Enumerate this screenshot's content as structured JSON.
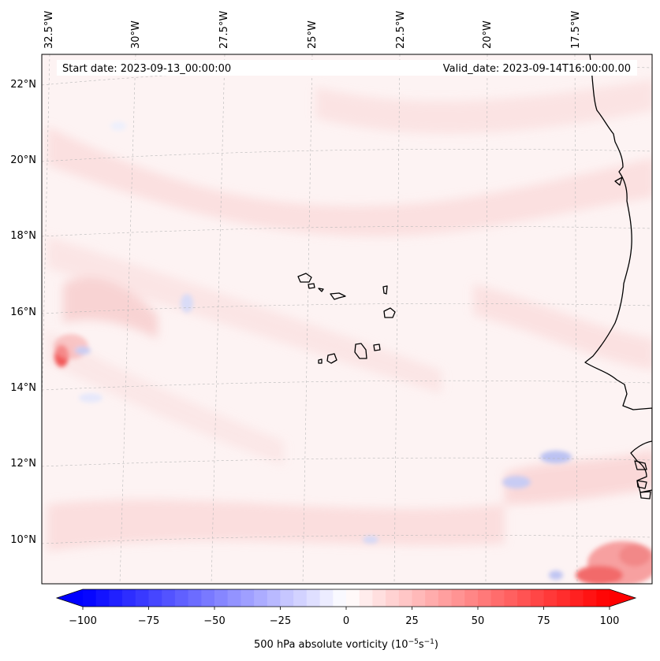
{
  "map": {
    "start_date": "Start date: 2023-09-13_00:00:00",
    "valid_date": "Valid_date: 2023-09-14T16:00:00.00",
    "longitude_labels": [
      "32.5°W",
      "30°W",
      "27.5°W",
      "25°W",
      "22.5°W",
      "20°W",
      "17.5°W"
    ],
    "latitude_labels": [
      "22°N",
      "20°N",
      "18°N",
      "16°N",
      "14°N",
      "12°N",
      "10°N"
    ],
    "field": "500 hPa absolute vorticity",
    "colormap": {
      "negative": "#0000ff",
      "zero": "#ffffff",
      "positive": "#ff0000"
    }
  },
  "colorbar": {
    "min": -100,
    "max": 100,
    "extend": "both",
    "ticks": [
      "−100",
      "−75",
      "−50",
      "−25",
      "0",
      "25",
      "50",
      "75",
      "100"
    ],
    "label_main": "500 hPa absolute vorticity (10",
    "label_exp1": "−5",
    "label_mid": "s",
    "label_exp2": "−1",
    "label_close": ")"
  }
}
